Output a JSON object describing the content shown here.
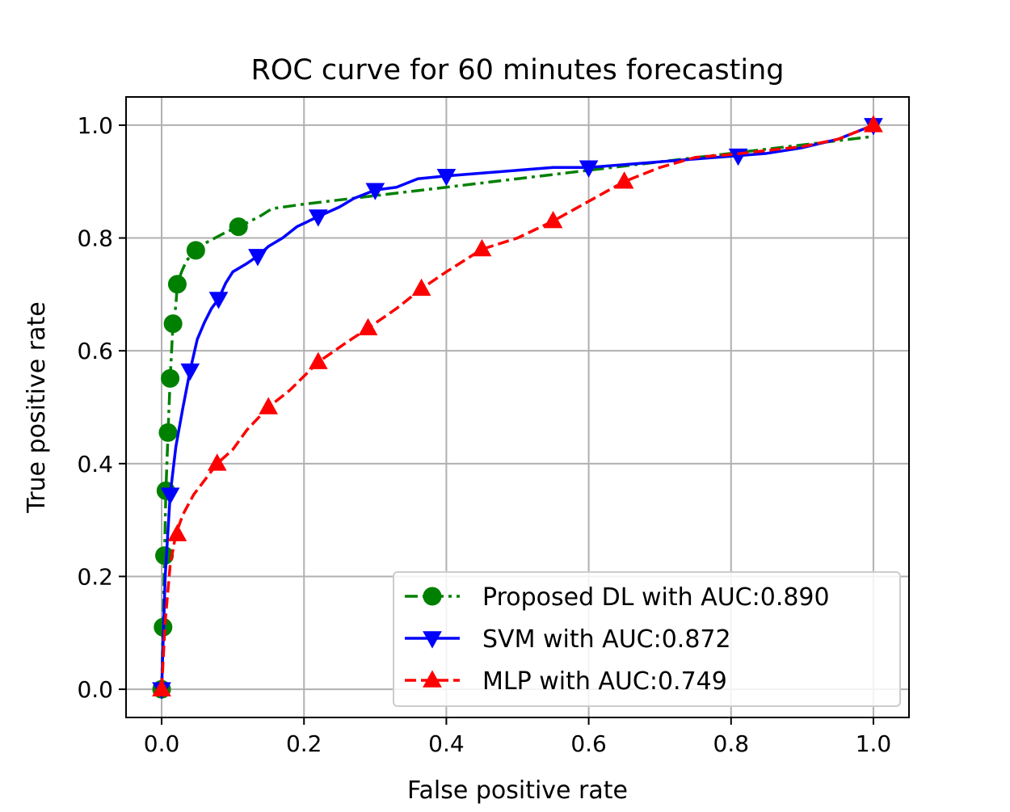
{
  "chart_data": {
    "type": "line",
    "title": "ROC curve for 60 minutes forecasting",
    "xlabel": "False positive rate",
    "ylabel": "True positive rate",
    "xlim": [
      -0.05,
      1.05
    ],
    "ylim": [
      -0.05,
      1.05
    ],
    "grid": true,
    "legend_position": "lower-right",
    "xticks": [
      0.0,
      0.2,
      0.4,
      0.6,
      0.8,
      1.0
    ],
    "xtick_labels": [
      "0.0",
      "0.2",
      "0.4",
      "0.6",
      "0.8",
      "1.0"
    ],
    "yticks": [
      0.0,
      0.2,
      0.4,
      0.6,
      0.8,
      1.0
    ],
    "ytick_labels": [
      "0.0",
      "0.2",
      "0.4",
      "0.6",
      "0.8",
      "1.0"
    ],
    "series": [
      {
        "name": "Proposed DL with AUC:0.890",
        "color": "#008000",
        "line_style": "dashdot",
        "marker": "circle",
        "line_x": [
          0.0,
          0.002,
          0.004,
          0.006,
          0.009,
          0.012,
          0.014,
          0.016,
          0.02,
          0.022,
          0.028,
          0.035,
          0.048,
          0.06,
          0.075,
          0.09,
          0.108,
          0.125,
          0.14,
          0.155,
          0.2,
          0.3,
          0.4,
          0.5,
          0.6,
          0.7,
          0.8,
          0.9,
          1.0
        ],
        "line_y": [
          0.0,
          0.11,
          0.237,
          0.352,
          0.455,
          0.551,
          0.6,
          0.648,
          0.68,
          0.718,
          0.74,
          0.76,
          0.778,
          0.79,
          0.8,
          0.81,
          0.82,
          0.83,
          0.84,
          0.852,
          0.86,
          0.875,
          0.89,
          0.905,
          0.92,
          0.935,
          0.95,
          0.965,
          0.98
        ],
        "markers_x": [
          0.0,
          0.002,
          0.004,
          0.006,
          0.009,
          0.012,
          0.016,
          0.022,
          0.048,
          0.108
        ],
        "markers_y": [
          0.0,
          0.11,
          0.237,
          0.352,
          0.455,
          0.551,
          0.648,
          0.718,
          0.778,
          0.82
        ]
      },
      {
        "name": "SVM with AUC:0.872",
        "color": "#0000ff",
        "line_style": "solid",
        "marker": "triangle-down",
        "line_x": [
          0.0,
          0.005,
          0.012,
          0.02,
          0.03,
          0.04,
          0.05,
          0.06,
          0.07,
          0.08,
          0.09,
          0.1,
          0.12,
          0.135,
          0.15,
          0.17,
          0.19,
          0.22,
          0.25,
          0.27,
          0.3,
          0.33,
          0.36,
          0.4,
          0.45,
          0.5,
          0.55,
          0.6,
          0.65,
          0.7,
          0.75,
          0.81,
          0.85,
          0.9,
          0.95,
          1.0
        ],
        "line_y": [
          0.0,
          0.2,
          0.345,
          0.43,
          0.5,
          0.565,
          0.62,
          0.65,
          0.675,
          0.692,
          0.72,
          0.74,
          0.755,
          0.768,
          0.785,
          0.8,
          0.82,
          0.838,
          0.855,
          0.87,
          0.885,
          0.89,
          0.905,
          0.91,
          0.915,
          0.92,
          0.925,
          0.925,
          0.93,
          0.935,
          0.94,
          0.946,
          0.95,
          0.96,
          0.975,
          1.0
        ],
        "markers_x": [
          0.0,
          0.012,
          0.04,
          0.08,
          0.135,
          0.22,
          0.3,
          0.4,
          0.6,
          0.81,
          1.0
        ],
        "markers_y": [
          0.0,
          0.345,
          0.565,
          0.692,
          0.768,
          0.838,
          0.885,
          0.91,
          0.925,
          0.946,
          1.0
        ]
      },
      {
        "name": "MLP with AUC:0.749",
        "color": "#ff0000",
        "line_style": "dashed",
        "marker": "triangle-up",
        "line_x": [
          0.0,
          0.005,
          0.012,
          0.02,
          0.03,
          0.045,
          0.06,
          0.078,
          0.1,
          0.12,
          0.15,
          0.18,
          0.22,
          0.26,
          0.29,
          0.33,
          0.365,
          0.4,
          0.45,
          0.5,
          0.55,
          0.6,
          0.65,
          0.7,
          0.75,
          0.8,
          0.85,
          0.9,
          0.95,
          1.0
        ],
        "line_y": [
          0.0,
          0.12,
          0.22,
          0.275,
          0.31,
          0.345,
          0.37,
          0.4,
          0.425,
          0.46,
          0.5,
          0.53,
          0.58,
          0.615,
          0.64,
          0.675,
          0.71,
          0.74,
          0.78,
          0.8,
          0.83,
          0.865,
          0.9,
          0.925,
          0.943,
          0.948,
          0.955,
          0.962,
          0.975,
          1.0
        ],
        "markers_x": [
          0.0,
          0.022,
          0.078,
          0.15,
          0.22,
          0.29,
          0.365,
          0.45,
          0.55,
          0.65,
          1.0
        ],
        "markers_y": [
          0.0,
          0.275,
          0.4,
          0.5,
          0.58,
          0.64,
          0.71,
          0.78,
          0.83,
          0.9,
          1.0
        ]
      }
    ]
  }
}
